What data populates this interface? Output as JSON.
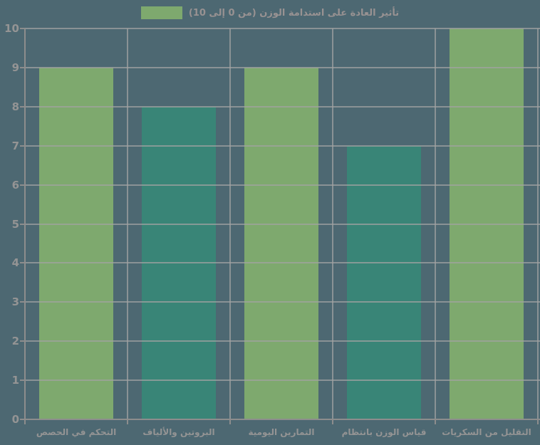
{
  "chart_data": {
    "type": "bar",
    "legend_label": "تأثير العادة على استدامة الوزن (من 0 إلى 10)",
    "legend_position": "top-center",
    "categories": [
      "التحكم في الحصص",
      "البروتين والألياف",
      "التمارين اليومية",
      "قياس الوزن بانتظام",
      "التقليل من السكريات"
    ],
    "values": [
      9,
      8,
      9,
      7,
      10
    ],
    "bar_colors": [
      "#7ea96e",
      "#398577",
      "#7ea96e",
      "#398577",
      "#7ea96e"
    ],
    "ylim": [
      0,
      10
    ],
    "yticks": [
      0,
      1,
      2,
      3,
      4,
      5,
      6,
      7,
      8,
      9,
      10
    ],
    "grid": true,
    "xlabel": "",
    "ylabel": "",
    "colors": {
      "background": "#4d6872",
      "bar_primary": "#7ea96e",
      "bar_secondary": "#398577",
      "grid": "#a2a2a2",
      "axis": "#8d8d8d",
      "tick_text": "#949494",
      "legend_text": "#989292",
      "legend_swatch": "#7ea96e"
    }
  }
}
